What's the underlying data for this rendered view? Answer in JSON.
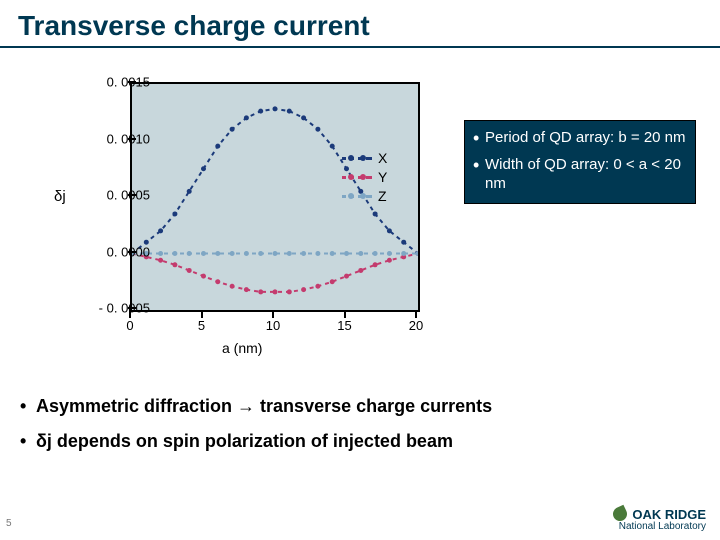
{
  "title": "Transverse charge current",
  "chart": {
    "type": "line",
    "plot_bg": "#c8d7dc",
    "frame_color": "#000000",
    "ylabel": "δj",
    "xlabel": "a (nm)",
    "label_fontsize": 14,
    "xlim": [
      0,
      20
    ],
    "ylim": [
      -0.0005,
      0.0015
    ],
    "yticks": [
      {
        "v": 0.0015,
        "label": "0. 0015"
      },
      {
        "v": 0.001,
        "label": "0. 0010"
      },
      {
        "v": 0.0005,
        "label": "0. 0005"
      },
      {
        "v": 0.0,
        "label": "0. 0000"
      },
      {
        "v": -0.0005,
        "label": "- 0. 0005"
      }
    ],
    "xticks": [
      {
        "v": 0,
        "label": "0"
      },
      {
        "v": 5,
        "label": "5"
      },
      {
        "v": 10,
        "label": "10"
      },
      {
        "v": 15,
        "label": "15"
      },
      {
        "v": 20,
        "label": "20"
      }
    ],
    "marker_size": 5,
    "line_width": 2,
    "dash": "4,4",
    "series": [
      {
        "name": "X",
        "color": "#1b3a7a",
        "x": [
          0,
          1,
          2,
          3,
          4,
          5,
          6,
          7,
          8,
          9,
          10,
          11,
          12,
          13,
          14,
          15,
          16,
          17,
          18,
          19,
          20
        ],
        "y": [
          0.0,
          0.0001,
          0.0002,
          0.00035,
          0.00055,
          0.00075,
          0.00095,
          0.0011,
          0.0012,
          0.00126,
          0.00128,
          0.00126,
          0.0012,
          0.0011,
          0.00095,
          0.00075,
          0.00055,
          0.00035,
          0.0002,
          0.0001,
          0.0
        ]
      },
      {
        "name": "Y",
        "color": "#c43b6e",
        "x": [
          0,
          1,
          2,
          3,
          4,
          5,
          6,
          7,
          8,
          9,
          10,
          11,
          12,
          13,
          14,
          15,
          16,
          17,
          18,
          19,
          20
        ],
        "y": [
          0.0,
          -3e-05,
          -6e-05,
          -0.0001,
          -0.00015,
          -0.0002,
          -0.00025,
          -0.00029,
          -0.00032,
          -0.00034,
          -0.00034,
          -0.00034,
          -0.00032,
          -0.00029,
          -0.00025,
          -0.0002,
          -0.00015,
          -0.0001,
          -6e-05,
          -3e-05,
          0.0
        ]
      },
      {
        "name": "Z",
        "color": "#7ea6c4",
        "x": [
          0,
          1,
          2,
          3,
          4,
          5,
          6,
          7,
          8,
          9,
          10,
          11,
          12,
          13,
          14,
          15,
          16,
          17,
          18,
          19,
          20
        ],
        "y": [
          0.0,
          0.0,
          0.0,
          0.0,
          0.0,
          0.0,
          0.0,
          0.0,
          0.0,
          0.0,
          0.0,
          0.0,
          0.0,
          0.0,
          0.0,
          0.0,
          0.0,
          0.0,
          0.0,
          0.0,
          0.0
        ]
      }
    ]
  },
  "callout": [
    "Period of QD array: b = 20 nm",
    "Width of QD array: 0 < a < 20 nm"
  ],
  "bullets": [
    "Asymmetric diffraction → transverse charge currents",
    "δj depends on spin polarization of injected beam"
  ],
  "slidenum": "5",
  "logo": {
    "name": "OAK RIDGE",
    "sub": "National Laboratory"
  }
}
